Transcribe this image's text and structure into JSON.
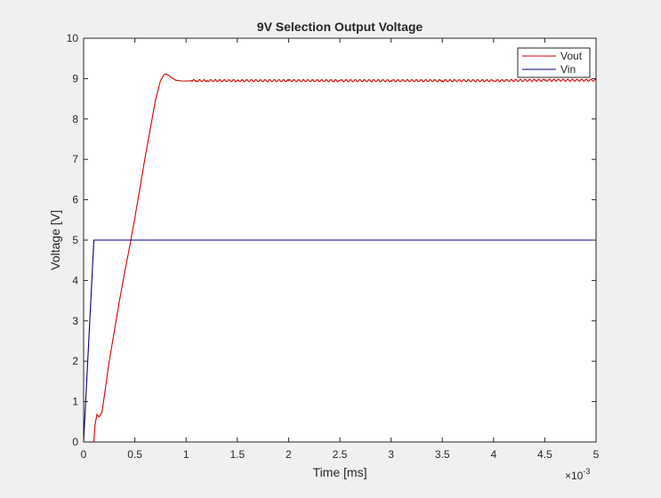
{
  "chart_data": {
    "type": "line",
    "title": "9V Selection Output Voltage",
    "xlabel": "Time [ms]",
    "ylabel": "Voltage [V]",
    "x_exponent_label": "×10",
    "x_exponent_power": "-3",
    "xlim": [
      0,
      0.005
    ],
    "ylim": [
      0,
      10
    ],
    "x_ticks": [
      0,
      0.0005,
      0.001,
      0.0015,
      0.002,
      0.0025,
      0.003,
      0.0035,
      0.004,
      0.0045,
      0.005
    ],
    "x_tick_labels": [
      "0",
      "0.5",
      "1",
      "1.5",
      "2",
      "2.5",
      "3",
      "3.5",
      "4",
      "4.5",
      "5"
    ],
    "y_ticks": [
      0,
      1,
      2,
      3,
      4,
      5,
      6,
      7,
      8,
      9,
      10
    ],
    "y_tick_labels": [
      "0",
      "1",
      "2",
      "3",
      "4",
      "5",
      "6",
      "7",
      "8",
      "9",
      "10"
    ],
    "grid": false,
    "legend_position": "top-right",
    "series": [
      {
        "name": "Vout",
        "color": "#d40000",
        "noise": 0.025,
        "x": [
          0,
          0.0001,
          0.00011,
          0.00013,
          0.00015,
          0.00018,
          0.0002,
          0.00025,
          0.0003,
          0.00035,
          0.0004,
          0.00045,
          0.0005,
          0.00055,
          0.0006,
          0.00065,
          0.0007,
          0.00075,
          0.00078,
          0.0008,
          0.00082,
          0.00085,
          0.00088,
          0.0009,
          0.00093,
          0.00096,
          0.001,
          0.00105,
          0.0011,
          0.0012,
          0.0015,
          0.002,
          0.0025,
          0.003,
          0.0035,
          0.004,
          0.0045,
          0.005
        ],
        "y": [
          0,
          0,
          0.4,
          0.68,
          0.62,
          0.75,
          1.1,
          2.0,
          2.75,
          3.5,
          4.2,
          4.85,
          5.55,
          6.3,
          7.05,
          7.75,
          8.45,
          8.95,
          9.08,
          9.12,
          9.1,
          9.04,
          8.99,
          8.96,
          8.95,
          8.94,
          8.94,
          8.95,
          8.95,
          8.95,
          8.95,
          8.95,
          8.95,
          8.95,
          8.95,
          8.95,
          8.96,
          8.96
        ]
      },
      {
        "name": "Vin",
        "color": "#00007f",
        "noise": 0,
        "x": [
          0,
          0.0001,
          0.005
        ],
        "y": [
          0,
          5,
          5
        ]
      }
    ]
  }
}
